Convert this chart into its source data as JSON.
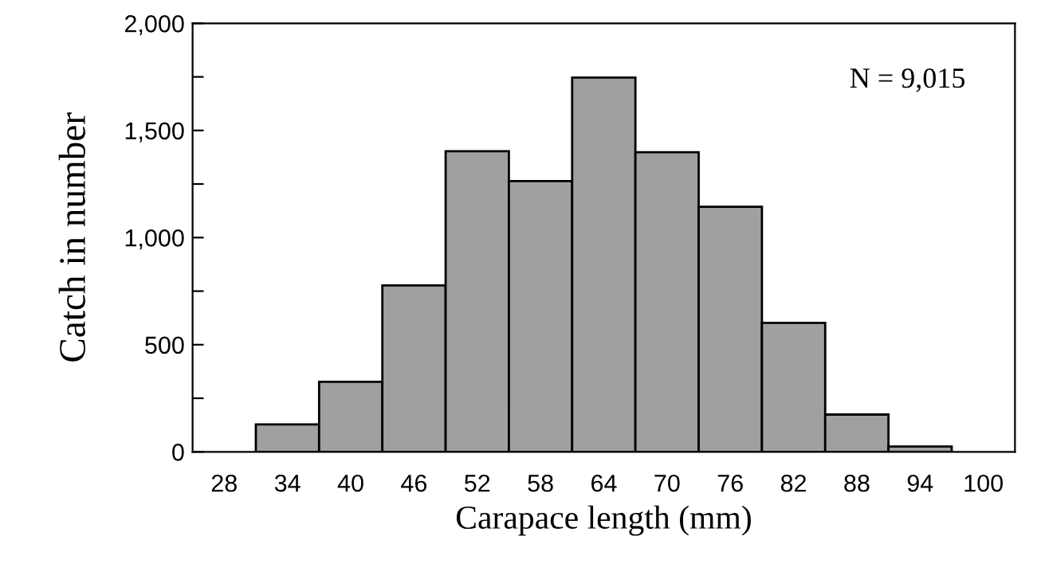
{
  "chart_data": {
    "type": "bar",
    "xlabel": "Carapace length (mm)",
    "ylabel": "Catch in number",
    "categories": [
      "28",
      "34",
      "40",
      "46",
      "52",
      "58",
      "64",
      "70",
      "76",
      "82",
      "88",
      "94",
      "100"
    ],
    "values": [
      null,
      128,
      327,
      777,
      1403,
      1264,
      1747,
      1398,
      1144,
      602,
      174,
      25,
      null
    ],
    "color": "#a0a0a0",
    "ylim": [
      0,
      2000
    ],
    "yticks": [
      0,
      {
        "value": 250,
        "label": null
      },
      500,
      {
        "value": 750,
        "label": null
      },
      {
        "value": 1000,
        "label": "1,000"
      },
      {
        "value": 1250,
        "label": null
      },
      {
        "value": 1500,
        "label": "1,500"
      },
      {
        "value": 1750,
        "label": null
      },
      {
        "value": 2000,
        "label": "2,000"
      }
    ],
    "annotations": [
      "N = 9,015"
    ],
    "grid": false,
    "legend": false
  }
}
